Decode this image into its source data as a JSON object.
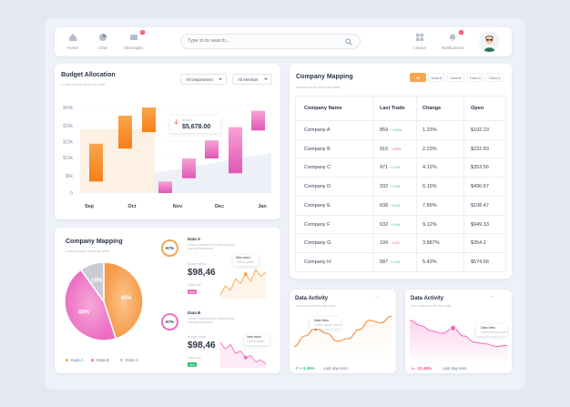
{
  "nav": {
    "home": "Home",
    "chat": "Chat",
    "messages": "Messages",
    "messages_badge": "5",
    "layout": "Layout",
    "notifications": "Notifications",
    "notifications_badge": "2"
  },
  "search": {
    "placeholder": "Type in to search..."
  },
  "budget": {
    "title": "Budget Allocation",
    "subtitle": "Lorem ipsum dolor sit amet",
    "department": "All Department",
    "member": "All Member",
    "tooltip_label": "Budget",
    "tooltip_value": "$5,678.00"
  },
  "mapping_table": {
    "title": "Company Mapping",
    "subtitle": "Lorem ipsum dolor sit amet",
    "tabs": [
      "All",
      "Data A",
      "Data B",
      "Data C",
      "Data D"
    ],
    "headers": [
      "Company Name",
      "Last Trade",
      "Change",
      "Open"
    ],
    "rows": [
      {
        "name": "Company A",
        "trade": "859",
        "delta": "+ 3.45%",
        "up": true,
        "change": "1.23%",
        "open": "$192.23"
      },
      {
        "name": "Company B",
        "trade": "915",
        "delta": "- 1.05%",
        "up": false,
        "change": "2.23%",
        "open": "$222.83"
      },
      {
        "name": "Company C",
        "trade": "971",
        "delta": "+ 4.1%",
        "up": true,
        "change": "4.12%",
        "open": "$353.56"
      },
      {
        "name": "Company D",
        "trade": "332",
        "delta": "+ 3.0%",
        "up": true,
        "change": "6.15%",
        "open": "$490.67"
      },
      {
        "name": "Company E",
        "trade": "638",
        "delta": "+ 6.1%",
        "up": true,
        "change": "7.89%",
        "open": "$108.47"
      },
      {
        "name": "Company F",
        "trade": "632",
        "delta": "+ 5.0%",
        "up": true,
        "change": "9.12%",
        "open": "$949.33"
      },
      {
        "name": "Company G",
        "trade": "199",
        "delta": "- 1.0%",
        "up": false,
        "change": "3.887%",
        "open": "$354.2"
      },
      {
        "name": "Company H",
        "trade": "587",
        "delta": "+ 3.0%",
        "up": true,
        "change": "5.43%",
        "open": "$574.56"
      }
    ]
  },
  "mapping_pie": {
    "title": "Company Mapping",
    "subtitle": "Lorem ipsum dolor sit amet",
    "legend": [
      "Data A",
      "Data B",
      "Data C"
    ]
  },
  "data_a": {
    "title": "Data A",
    "desc": "Lorem imesshort foo shorts lorem\nsam perhomiques",
    "percent": "67%",
    "label": "Budget allow",
    "value": "$98,46",
    "total_label": "Total Low",
    "pill": "99%",
    "tip": "New word",
    "tip_sub": "Lorem ipsum"
  },
  "data_b": {
    "title": "Data B",
    "desc": "Lorem imesshort foo shorts lorem\nsam perhomiques",
    "percent": "67%",
    "label": "Budget allow",
    "value": "$98,46",
    "total_label": "Total Low",
    "pill": "99%",
    "tip": "New word",
    "tip_sub": "Lorem ipsum"
  },
  "activity_1": {
    "title": "Data Activity",
    "subtitle": "Your project list for this week",
    "tip": "Data View",
    "tip_sub": "Lorem ipsum dolor",
    "delta": "+ 3.49%",
    "footer": "Last day item",
    "more": "···"
  },
  "activity_2": {
    "title": "Data Activity",
    "subtitle": "Your project list for this week",
    "tip": "Data View",
    "tip_sub": "Lorem ipsum dolor",
    "delta": "- 12.49%",
    "footer": "Last day item",
    "more": "···"
  },
  "colors": {
    "orange": "#f7a64d",
    "orange_dark": "#f57f17",
    "pink": "#f06fc0",
    "grey": "#c9ccd4",
    "green": "#2ec07a",
    "red": "#f0506e"
  },
  "chart_data": [
    {
      "type": "bar",
      "subtype": "floating-range",
      "categories": [
        "Sep",
        "Oct",
        "Nov",
        "Dec",
        "Jan"
      ],
      "ytick_labels": [
        "$40k",
        "$30k",
        "$20k",
        "$15k",
        "$5k",
        "0"
      ],
      "series": [
        {
          "color": "#f7a64d",
          "ranges": [
            [
              7,
              30
            ],
            [
              27,
              47
            ],
            [
              37,
              52
            ]
          ]
        },
        {
          "color": "#f06fc0",
          "ranges": [
            [
              0,
              7
            ],
            [
              9,
              21
            ],
            [
              21,
              32
            ],
            [
              12,
              40
            ],
            [
              38,
              50
            ]
          ]
        }
      ]
    },
    {
      "type": "pie",
      "labels": [
        "Data A",
        "Data B",
        "Data C"
      ],
      "values": [
        45,
        45,
        10
      ],
      "label_text": [
        "45%",
        "45%",
        "10%"
      ]
    },
    {
      "type": "line",
      "values": [
        20,
        40,
        55,
        45,
        30,
        35,
        52,
        70,
        65,
        78
      ]
    },
    {
      "type": "line",
      "values": [
        70,
        60,
        50,
        45,
        55,
        40,
        28,
        25,
        20,
        22
      ]
    }
  ]
}
